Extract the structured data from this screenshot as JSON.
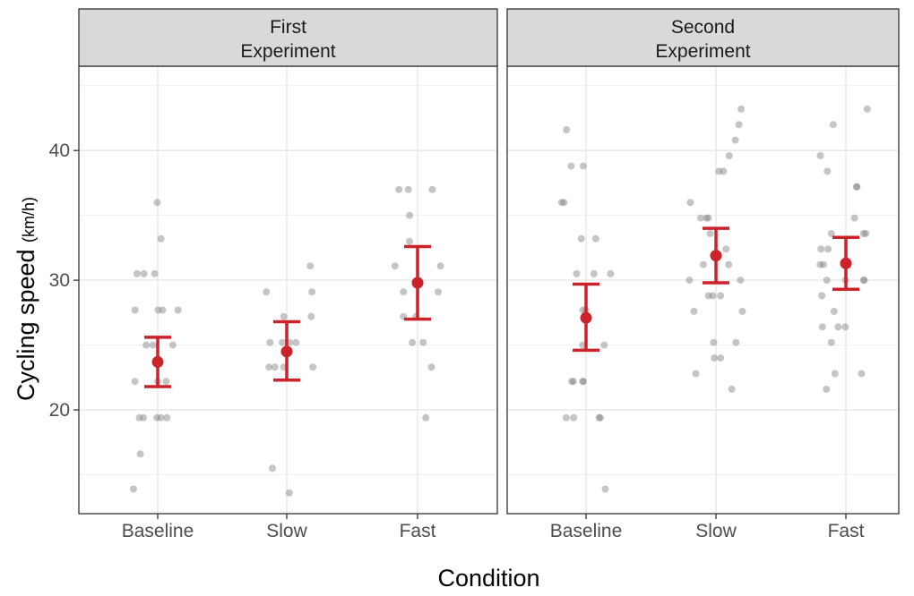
{
  "chart_data": {
    "type": "scatter",
    "xlabel": "Condition",
    "ylabel": "Cycling speed",
    "ylabel_unit": "(km/h)",
    "ylim": [
      12,
      46.5
    ],
    "y_ticks": [
      20,
      30,
      40
    ],
    "categories": [
      "Baseline",
      "Slow",
      "Fast"
    ],
    "grid": true,
    "colors": {
      "points": "#7f7f7f",
      "summary": "#cc2229",
      "strip_fill": "#d9d9d9",
      "grid": "#e5e5e5",
      "frame": "#333333"
    },
    "panels": [
      {
        "title": [
          "First",
          "Experiment"
        ],
        "summary": [
          {
            "category": "Baseline",
            "mean": 23.7,
            "lower": 21.8,
            "upper": 25.6
          },
          {
            "category": "Slow",
            "mean": 24.5,
            "lower": 22.3,
            "upper": 26.8
          },
          {
            "category": "Fast",
            "mean": 29.8,
            "lower": 27.0,
            "upper": 32.6
          }
        ],
        "points": [
          {
            "category": "Baseline",
            "values": [
              36.0,
              33.2,
              30.5,
              30.5,
              30.5,
              27.7,
              27.7,
              27.7,
              27.7,
              25.0,
              25.0,
              25.0,
              22.2,
              22.2,
              22.2,
              19.4,
              19.4,
              19.4,
              19.4,
              19.4,
              16.6,
              13.9
            ]
          },
          {
            "category": "Slow",
            "values": [
              31.1,
              29.1,
              29.1,
              27.2,
              27.2,
              25.2,
              25.2,
              25.2,
              25.2,
              23.3,
              23.3,
              23.3,
              23.3,
              15.5,
              13.6
            ]
          },
          {
            "category": "Fast",
            "values": [
              37.0,
              37.0,
              37.0,
              35.0,
              33.0,
              31.1,
              31.1,
              29.1,
              29.1,
              27.2,
              27.2,
              25.2,
              25.2,
              23.3,
              19.4
            ]
          }
        ]
      },
      {
        "title": [
          "Second",
          "Experiment"
        ],
        "summary": [
          {
            "category": "Baseline",
            "mean": 27.1,
            "lower": 24.6,
            "upper": 29.7
          },
          {
            "category": "Slow",
            "mean": 31.9,
            "lower": 29.8,
            "upper": 34.0
          },
          {
            "category": "Fast",
            "mean": 31.3,
            "lower": 29.3,
            "upper": 33.3
          }
        ],
        "points": [
          {
            "category": "Baseline",
            "values": [
              41.6,
              38.8,
              38.8,
              36.0,
              36.0,
              33.2,
              33.2,
              30.5,
              30.5,
              30.5,
              27.7,
              27.7,
              25.0,
              25.0,
              22.2,
              22.2,
              22.2,
              22.2,
              19.4,
              19.4,
              19.4,
              19.4,
              13.9
            ]
          },
          {
            "category": "Slow",
            "values": [
              43.2,
              42.0,
              40.8,
              39.6,
              38.4,
              38.4,
              36.0,
              34.8,
              34.8,
              34.8,
              33.6,
              32.4,
              31.2,
              31.2,
              30.0,
              30.0,
              28.8,
              28.8,
              28.8,
              27.6,
              27.6,
              25.2,
              25.2,
              24.0,
              24.0,
              22.8,
              21.6
            ]
          },
          {
            "category": "Fast",
            "values": [
              43.2,
              42.0,
              39.6,
              38.4,
              37.2,
              37.2,
              34.8,
              33.6,
              33.6,
              33.6,
              32.4,
              32.4,
              31.2,
              31.2,
              31.2,
              30.0,
              30.0,
              30.0,
              30.0,
              28.8,
              27.6,
              26.4,
              26.4,
              26.4,
              25.2,
              22.8,
              22.8,
              21.6
            ]
          }
        ]
      }
    ]
  }
}
